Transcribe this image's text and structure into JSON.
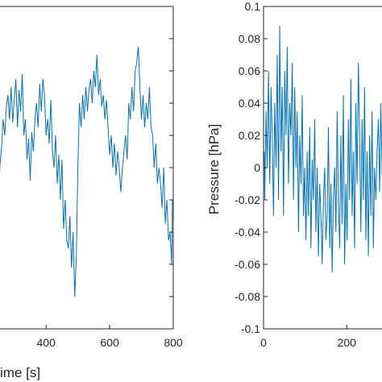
{
  "chart_data": [
    {
      "type": "line",
      "title": "",
      "xlabel": "ime [s]",
      "ylabel": "",
      "xlim": [
        250,
        800
      ],
      "ylim": [
        -0.1,
        0.1
      ],
      "x_ticks": [
        400,
        600,
        800
      ],
      "x_tick_labels": [
        "400",
        "600",
        "800"
      ],
      "grid": false,
      "color": "#0072BD",
      "series": [
        {
          "x": [
            250,
            255,
            260,
            265,
            270,
            275,
            280,
            285,
            290,
            295,
            300,
            305,
            310,
            315,
            320,
            325,
            330,
            335,
            340,
            345,
            350,
            355,
            360,
            365,
            370,
            375,
            380,
            385,
            390,
            395,
            400,
            405,
            410,
            415,
            420,
            425,
            430,
            435,
            440,
            445,
            450,
            455,
            460,
            465,
            470,
            475,
            480,
            485,
            490,
            495,
            500,
            505,
            510,
            515,
            520,
            525,
            530,
            535,
            540,
            545,
            550,
            555,
            560,
            565,
            570,
            575,
            580,
            585,
            590,
            595,
            600,
            605,
            610,
            615,
            620,
            625,
            630,
            635,
            640,
            645,
            650,
            655,
            660,
            665,
            670,
            675,
            680,
            685,
            690,
            695,
            700,
            705,
            710,
            715,
            720,
            725,
            730,
            735,
            740,
            745,
            750,
            755,
            760,
            765,
            770,
            775,
            780,
            785,
            790,
            795,
            800
          ],
          "y": [
            -0.01,
            0.002,
            0.012,
            0.03,
            0.02,
            0.038,
            0.045,
            0.03,
            0.05,
            0.028,
            0.042,
            0.055,
            0.025,
            0.048,
            0.035,
            0.058,
            0.02,
            0.03,
            0.005,
            0.018,
            -0.008,
            0.022,
            0.01,
            0.03,
            0.04,
            0.025,
            0.052,
            0.035,
            0.055,
            0.045,
            0.02,
            0.03,
            0.015,
            0.042,
            0.01,
            0.0,
            0.02,
            -0.01,
            0.008,
            -0.02,
            0.005,
            -0.038,
            -0.02,
            -0.045,
            -0.05,
            -0.03,
            -0.062,
            -0.04,
            -0.08,
            -0.055,
            0.0,
            0.04,
            0.025,
            0.045,
            0.03,
            0.05,
            0.035,
            0.048,
            0.055,
            0.04,
            0.06,
            0.05,
            0.07,
            0.045,
            0.055,
            0.038,
            0.045,
            0.03,
            0.042,
            0.025,
            0.008,
            0.02,
            0.0,
            0.015,
            -0.005,
            0.01,
            0.0,
            -0.015,
            0.0,
            0.01,
            0.02,
            0.005,
            0.04,
            0.03,
            0.05,
            0.035,
            0.06,
            0.065,
            0.075,
            0.05,
            0.03,
            0.045,
            0.025,
            0.04,
            0.03,
            0.05,
            0.025,
            0.02,
            0.0,
            0.015,
            -0.01,
            0.0,
            -0.01,
            -0.025,
            0.0,
            -0.035,
            -0.02,
            -0.045,
            -0.04,
            -0.06,
            -0.02
          ]
        }
      ]
    },
    {
      "type": "line",
      "title": "",
      "xlabel": "",
      "ylabel": "Pressure [hPa]",
      "xlim": [
        0,
        310
      ],
      "ylim": [
        -0.1,
        0.1
      ],
      "x_ticks": [
        0,
        200
      ],
      "x_tick_labels": [
        "0",
        "200"
      ],
      "y_ticks": [
        0.1,
        0.08,
        0.06,
        0.04,
        0.02,
        0,
        -0.02,
        -0.04,
        -0.06,
        -0.08,
        -0.1
      ],
      "y_tick_labels": [
        "0.1",
        "0.08",
        "0.06",
        "0.04",
        "0.02",
        "0",
        "-0.02",
        "-0.04",
        "-0.06",
        "-0.08",
        "-0.1"
      ],
      "grid": false,
      "color": "#0072BD",
      "series": [
        {
          "x": [
            0,
            3,
            6,
            9,
            12,
            15,
            18,
            21,
            24,
            27,
            30,
            33,
            36,
            39,
            42,
            45,
            48,
            51,
            54,
            57,
            60,
            63,
            66,
            69,
            72,
            75,
            78,
            81,
            84,
            87,
            90,
            93,
            96,
            99,
            102,
            105,
            108,
            111,
            114,
            117,
            120,
            123,
            126,
            129,
            132,
            135,
            138,
            141,
            144,
            147,
            150,
            153,
            156,
            159,
            162,
            165,
            168,
            171,
            174,
            177,
            180,
            183,
            186,
            189,
            192,
            195,
            198,
            201,
            204,
            207,
            210,
            213,
            216,
            219,
            222,
            225,
            228,
            231,
            234,
            237,
            240,
            243,
            246,
            249,
            252,
            255,
            258,
            261,
            264,
            267,
            270,
            273,
            276,
            279,
            282,
            285,
            288,
            291,
            294,
            297,
            300,
            303,
            306,
            309
          ],
          "y": [
            0.01,
            -0.02,
            0.035,
            0.0,
            0.06,
            -0.01,
            0.05,
            0.02,
            -0.03,
            0.04,
            0.0,
            0.07,
            -0.02,
            0.088,
            0.01,
            0.05,
            -0.03,
            0.06,
            0.02,
            0.075,
            -0.01,
            0.04,
            0.02,
            0.065,
            -0.02,
            0.05,
            0.0,
            0.035,
            -0.04,
            0.02,
            -0.01,
            0.045,
            -0.03,
            0.0,
            -0.045,
            0.01,
            -0.03,
            0.025,
            -0.05,
            0.005,
            -0.02,
            0.03,
            -0.04,
            0.0,
            -0.055,
            -0.01,
            -0.03,
            -0.06,
            -0.02,
            0.0,
            -0.045,
            -0.03,
            0.025,
            -0.05,
            -0.01,
            -0.065,
            -0.02,
            0.0,
            -0.04,
            0.035,
            -0.02,
            -0.05,
            0.02,
            -0.035,
            0.045,
            -0.06,
            -0.01,
            -0.045,
            0.03,
            -0.02,
            0.055,
            -0.03,
            0.01,
            -0.05,
            0.04,
            -0.01,
            0.065,
            0.02,
            -0.04,
            0.03,
            -0.02,
            0.05,
            -0.045,
            0.01,
            -0.055,
            0.02,
            -0.03,
            0.035,
            -0.05,
            0.0,
            -0.02,
            0.01,
            0.03,
            -0.015,
            0.04,
            -0.005,
            0.02,
            0.0,
            0.03,
            0.01,
            0.025,
            -0.01,
            0.015,
            0.0
          ]
        }
      ]
    }
  ]
}
